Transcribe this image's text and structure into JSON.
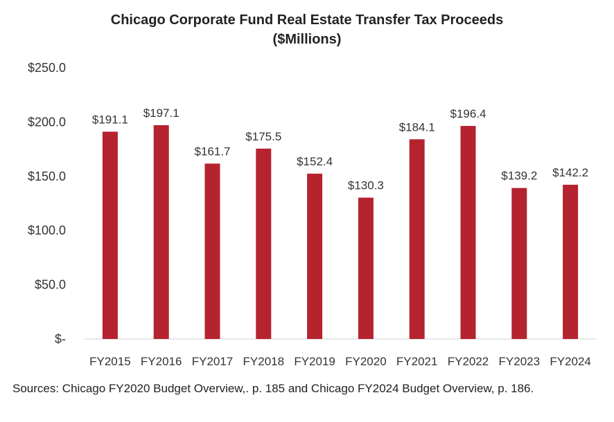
{
  "chart_data": {
    "type": "bar",
    "title": "Chicago Corporate Fund Real Estate Transfer Tax Proceeds",
    "subtitle": "($Millions)",
    "categories": [
      "FY2015",
      "FY2016",
      "FY2017",
      "FY2018",
      "FY2019",
      "FY2020",
      "FY2021",
      "FY2022",
      "FY2023",
      "FY2024"
    ],
    "values": [
      191.1,
      197.1,
      161.7,
      175.5,
      152.4,
      130.3,
      184.1,
      196.4,
      139.2,
      142.2
    ],
    "value_labels": [
      "$191.1",
      "$197.1",
      "$161.7",
      "$175.5",
      "$152.4",
      "$130.3",
      "$184.1",
      "$196.4",
      "$139.2",
      "$142.2"
    ],
    "y_ticks": [
      0,
      50,
      100,
      150,
      200,
      250
    ],
    "y_tick_labels": [
      "$-",
      "$50.0",
      "$100.0",
      "$150.0",
      "$200.0",
      "$250.0"
    ],
    "ylim": [
      0,
      250
    ],
    "grid": false,
    "bar_color": "#b5232f",
    "source": "Sources: Chicago FY2020 Budget Overview,. p. 185 and Chicago FY2024 Budget Overview, p. 186."
  }
}
